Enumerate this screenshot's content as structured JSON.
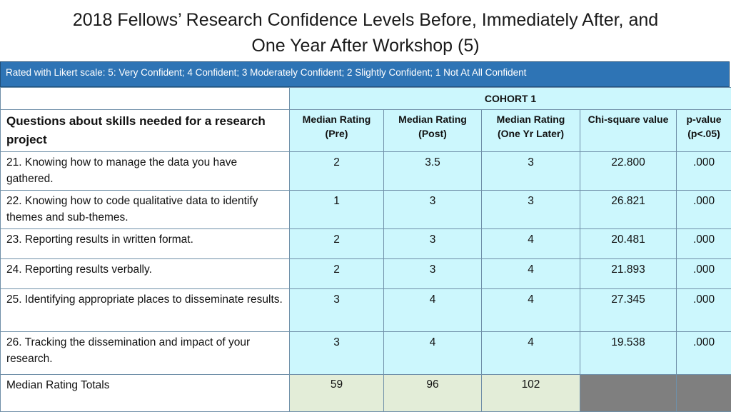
{
  "title": {
    "line1": "2018 Fellows’ Research Confidence Levels Before, Immediately After, and",
    "line2": "One Year After  Workshop (5)"
  },
  "banner": "Rated with Likert scale: 5: Very Confident; 4 Confident; 3 Moderately Confident; 2 Slightly Confident; 1 Not At All Confident",
  "table": {
    "cohort_label": "COHORT 1",
    "question_header": "Questions about skills needed for a research project",
    "columns": [
      {
        "line1": "Median Rating",
        "line2": "(Pre)"
      },
      {
        "line1": "Median Rating",
        "line2": "(Post)"
      },
      {
        "line1": "Median Rating",
        "line2": "(One Yr Later)"
      },
      {
        "line1": "Chi-square value",
        "line2": ""
      },
      {
        "line1": "p-value",
        "line2": "(p<.05)"
      }
    ],
    "rows": [
      {
        "question": "21. Knowing how to manage the data you have gathered.",
        "pre": "2",
        "post": "3.5",
        "later": "3",
        "chi": "22.800",
        "p": ".000"
      },
      {
        "question": "22. Knowing how to code qualitative data to identify themes and sub-themes.",
        "pre": "1",
        "post": "3",
        "later": "3",
        "chi": "26.821",
        "p": ".000"
      },
      {
        "question": "23. Reporting results in written format.",
        "pre": "2",
        "post": "3",
        "later": "4",
        "chi": "20.481",
        "p": ".000"
      },
      {
        "question": "24. Reporting results verbally.",
        "pre": "2",
        "post": "3",
        "later": "4",
        "chi": "21.893",
        "p": ".000"
      },
      {
        "question": "25. Identifying appropriate places to disseminate results.",
        "pre": "3",
        "post": "4",
        "later": "4",
        "chi": "27.345",
        "p": ".000"
      },
      {
        "question": "26. Tracking the dissemination and impact of your research.",
        "pre": "3",
        "post": "4",
        "later": "4",
        "chi": "19.538",
        "p": ".000"
      }
    ],
    "totals": {
      "label": "Median Rating Totals",
      "pre": "59",
      "post": "96",
      "later": "102"
    }
  },
  "colors": {
    "banner": "#2e74b5",
    "cell_blue": "#ccf7fd",
    "cell_green": "#e3edd8",
    "cell_gray": "#7f7f7f"
  }
}
